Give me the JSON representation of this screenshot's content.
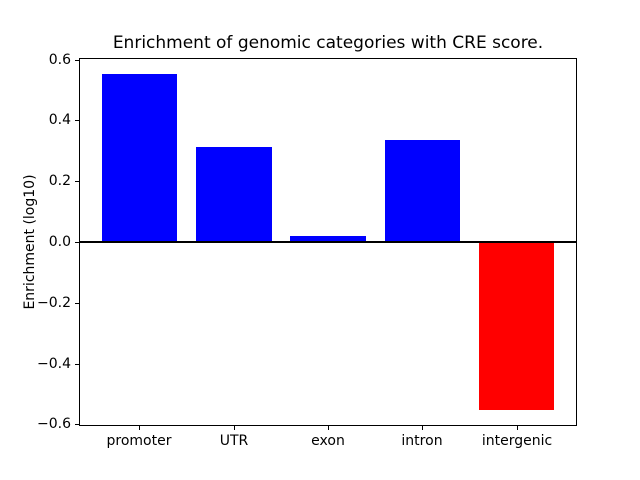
{
  "figure": {
    "background": "#ffffff"
  },
  "chart_data": {
    "type": "bar",
    "title": "Enrichment of genomic categories with CRE score.",
    "xlabel": "",
    "ylabel": "Enrichment (log10)",
    "categories": [
      "promoter",
      "UTR",
      "exon",
      "intron",
      "intergenic"
    ],
    "values": [
      0.553,
      0.313,
      0.02,
      0.335,
      -0.552
    ],
    "bar_colors": [
      "#0000ff",
      "#0000ff",
      "#0000ff",
      "#0000ff",
      "#ff0000"
    ],
    "positive_color": "#0000ff",
    "negative_color": "#ff0000",
    "bar_width": 0.8,
    "xlim": [
      -0.64,
      4.64
    ],
    "ylim": [
      -0.605,
      0.605
    ],
    "yticks": [
      0.6,
      0.4,
      0.2,
      0.0,
      -0.2,
      -0.4,
      -0.6
    ],
    "ytick_labels": [
      "0.6",
      "0.4",
      "0.2",
      "0.0",
      "−0.2",
      "−0.4",
      "−0.6"
    ],
    "grid": false,
    "legend": null,
    "zero_line": {
      "y": 0,
      "color": "#000000",
      "linewidth": 2
    },
    "frame_color": "#000000",
    "text_color": "#000000"
  }
}
